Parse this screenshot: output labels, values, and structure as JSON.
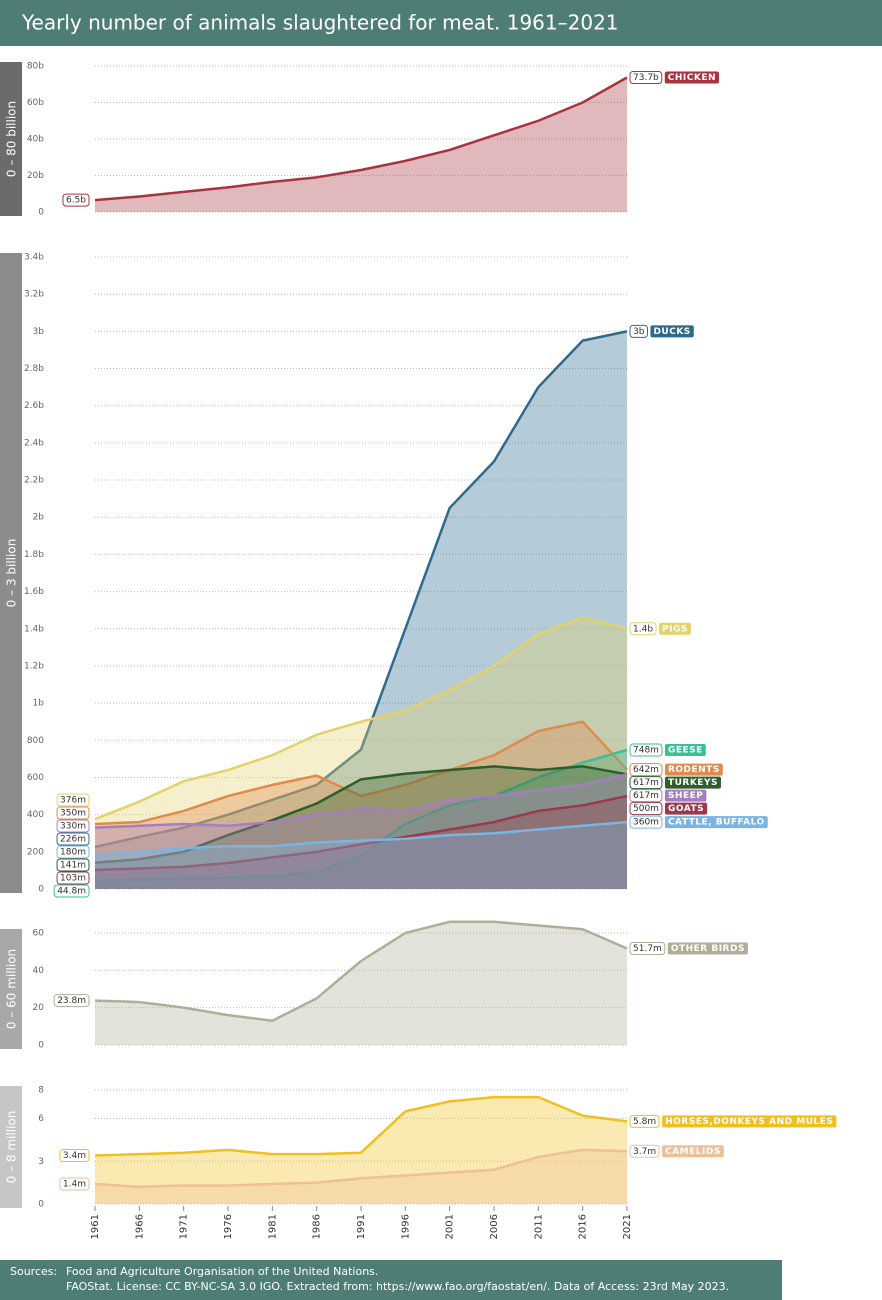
{
  "title": "Yearly number of animals slaughtered for meat. 1961–2021",
  "footer": {
    "label": "Sources:",
    "lines": [
      "Food and Agriculture Organisation of the United Nations.",
      "FAOStat. License: CC BY-NC-SA 3.0 IGO. Extracted from: https://www.fao.org/faostat/en/. Data of Access: 23rd May 2023."
    ]
  },
  "chart_data": [
    {
      "type": "area",
      "ylabel": "0 – 80 billion",
      "x": [
        1961,
        1966,
        1971,
        1976,
        1981,
        1986,
        1991,
        1996,
        2001,
        2006,
        2011,
        2016,
        2021
      ],
      "xlim": [
        1961,
        2021
      ],
      "ylim": [
        0,
        80
      ],
      "yticks": [
        0,
        {
          "value": 20,
          "label": "20b"
        },
        {
          "value": 40,
          "label": "40b"
        },
        {
          "value": 60,
          "label": "60b"
        },
        {
          "value": 80,
          "label": "80b"
        }
      ],
      "grid": true,
      "series": [
        {
          "name": "CHICKEN",
          "color": "#a8343f",
          "values": [
            6.5,
            8.5,
            11,
            13.5,
            16.5,
            19,
            23,
            28,
            34,
            42,
            50,
            60,
            73.7
          ],
          "value_labels": [
            "6.5b",
            null,
            null,
            null,
            null,
            null,
            null,
            null,
            null,
            null,
            null,
            null,
            "73.7b"
          ]
        }
      ]
    },
    {
      "type": "area",
      "ylabel": "0 – 3 billion",
      "x": [
        1961,
        1966,
        1971,
        1976,
        1981,
        1986,
        1991,
        1996,
        2001,
        2006,
        2011,
        2016,
        2021
      ],
      "xlim": [
        1961,
        2021
      ],
      "ylim": [
        0,
        3400
      ],
      "yticks": [
        0,
        200,
        400,
        600,
        800,
        {
          "value": 1000,
          "label": "1b"
        },
        {
          "value": 1200,
          "label": "1.2b"
        },
        {
          "value": 1400,
          "label": "1.4b"
        },
        {
          "value": 1600,
          "label": "1.6b"
        },
        {
          "value": 1800,
          "label": "1.8b"
        },
        {
          "value": 2000,
          "label": "2b"
        },
        {
          "value": 2200,
          "label": "2.2b"
        },
        {
          "value": 2400,
          "label": "2.4b"
        },
        {
          "value": 2600,
          "label": "2.6b"
        },
        {
          "value": 2800,
          "label": "2.8b"
        },
        {
          "value": 3000,
          "label": "3b"
        },
        {
          "value": 3200,
          "label": "3.2b"
        },
        {
          "value": 3400,
          "label": "3.4b"
        }
      ],
      "grid": true,
      "series": [
        {
          "name": "DUCKS",
          "color": "#2e6a8e",
          "values": [
            226,
            280,
            330,
            400,
            480,
            560,
            750,
            1400,
            2050,
            2300,
            2700,
            2950,
            3000
          ],
          "value_labels": [
            "226m",
            null,
            null,
            null,
            null,
            null,
            null,
            null,
            null,
            null,
            null,
            null,
            "3b"
          ]
        },
        {
          "name": "PIGS",
          "color": "#e3d26a",
          "values": [
            376,
            470,
            580,
            640,
            720,
            830,
            900,
            960,
            1070,
            1200,
            1370,
            1460,
            1400
          ],
          "value_labels": [
            "376m",
            null,
            null,
            null,
            null,
            null,
            null,
            null,
            null,
            null,
            null,
            null,
            "1.4b"
          ]
        },
        {
          "name": "RODENTS",
          "color": "#e08a4c",
          "values": [
            350,
            360,
            420,
            500,
            560,
            610,
            500,
            560,
            640,
            720,
            850,
            900,
            642
          ],
          "value_labels": [
            "350m",
            null,
            null,
            null,
            null,
            null,
            null,
            null,
            null,
            null,
            null,
            null,
            "642m"
          ]
        },
        {
          "name": "GEESE",
          "color": "#3bbf95",
          "values": [
            44.8,
            50,
            55,
            62,
            70,
            90,
            180,
            350,
            450,
            500,
            600,
            680,
            748
          ],
          "value_labels": [
            "44.8m",
            null,
            null,
            null,
            null,
            null,
            null,
            null,
            null,
            null,
            null,
            null,
            "748m"
          ]
        },
        {
          "name": "TURKEYS",
          "color": "#2e5e2a",
          "values": [
            141,
            160,
            200,
            290,
            370,
            460,
            590,
            620,
            640,
            660,
            640,
            660,
            617
          ],
          "value_labels": [
            "141m",
            null,
            null,
            null,
            null,
            null,
            null,
            null,
            null,
            null,
            null,
            null,
            "617m"
          ]
        },
        {
          "name": "SHEEP",
          "color": "#a77dc2",
          "values": [
            330,
            340,
            350,
            340,
            360,
            400,
            430,
            420,
            480,
            500,
            530,
            560,
            617
          ],
          "value_labels": [
            "330m",
            null,
            null,
            null,
            null,
            null,
            null,
            null,
            null,
            null,
            null,
            null,
            "617m"
          ]
        },
        {
          "name": "GOATS",
          "color": "#9a3a4a",
          "values": [
            103,
            110,
            120,
            140,
            170,
            200,
            240,
            280,
            320,
            360,
            420,
            450,
            500
          ],
          "value_labels": [
            "103m",
            null,
            null,
            null,
            null,
            null,
            null,
            null,
            null,
            null,
            null,
            null,
            "500m"
          ]
        },
        {
          "name": "CATTLE, BUFFALO",
          "color": "#7ab4e2",
          "values": [
            180,
            200,
            220,
            230,
            230,
            250,
            260,
            270,
            290,
            300,
            320,
            340,
            360
          ],
          "value_labels": [
            "180m",
            null,
            null,
            null,
            null,
            null,
            null,
            null,
            null,
            null,
            null,
            null,
            "360m"
          ]
        }
      ]
    },
    {
      "type": "area",
      "ylabel": "0 – 60 million",
      "x": [
        1961,
        1966,
        1971,
        1976,
        1981,
        1986,
        1991,
        1996,
        2001,
        2006,
        2011,
        2016,
        2021
      ],
      "xlim": [
        1961,
        2021
      ],
      "ylim": [
        0,
        60
      ],
      "yticks": [
        0,
        20,
        40,
        60
      ],
      "grid": true,
      "series": [
        {
          "name": "OTHER BIRDS",
          "color": "#b0ae98",
          "values": [
            23.8,
            23,
            20,
            16,
            13,
            25,
            45,
            60,
            66,
            66,
            64,
            62,
            51.7
          ],
          "value_labels": [
            "23.8m",
            null,
            null,
            null,
            null,
            null,
            null,
            null,
            null,
            null,
            null,
            null,
            "51.7m"
          ]
        }
      ]
    },
    {
      "type": "area",
      "ylabel": "0 – 8 million",
      "x": [
        1961,
        1966,
        1971,
        1976,
        1981,
        1986,
        1991,
        1996,
        2001,
        2006,
        2011,
        2016,
        2021
      ],
      "xlim": [
        1961,
        2021
      ],
      "xticks": [
        1961,
        1966,
        1971,
        1976,
        1981,
        1986,
        1991,
        1996,
        2001,
        2006,
        2011,
        2016,
        2021
      ],
      "ylim": [
        0,
        8
      ],
      "yticks": [
        0,
        3,
        6,
        8
      ],
      "grid": true,
      "series": [
        {
          "name": "HORSES,DONKEYS AND MULES",
          "color": "#f0c020",
          "values": [
            3.4,
            3.5,
            3.6,
            3.8,
            3.5,
            3.5,
            3.6,
            6.5,
            7.2,
            7.5,
            7.5,
            6.2,
            5.8
          ],
          "value_labels": [
            "3.4m",
            null,
            null,
            null,
            null,
            null,
            null,
            null,
            null,
            null,
            null,
            null,
            "5.8m"
          ]
        },
        {
          "name": "CAMELIDS",
          "color": "#eebf98",
          "values": [
            1.4,
            1.2,
            1.3,
            1.3,
            1.4,
            1.5,
            1.8,
            2.0,
            2.2,
            2.4,
            3.3,
            3.8,
            3.7
          ],
          "value_labels": [
            "1.4m",
            null,
            null,
            null,
            null,
            null,
            null,
            null,
            null,
            null,
            null,
            null,
            "3.7m"
          ]
        }
      ]
    }
  ]
}
